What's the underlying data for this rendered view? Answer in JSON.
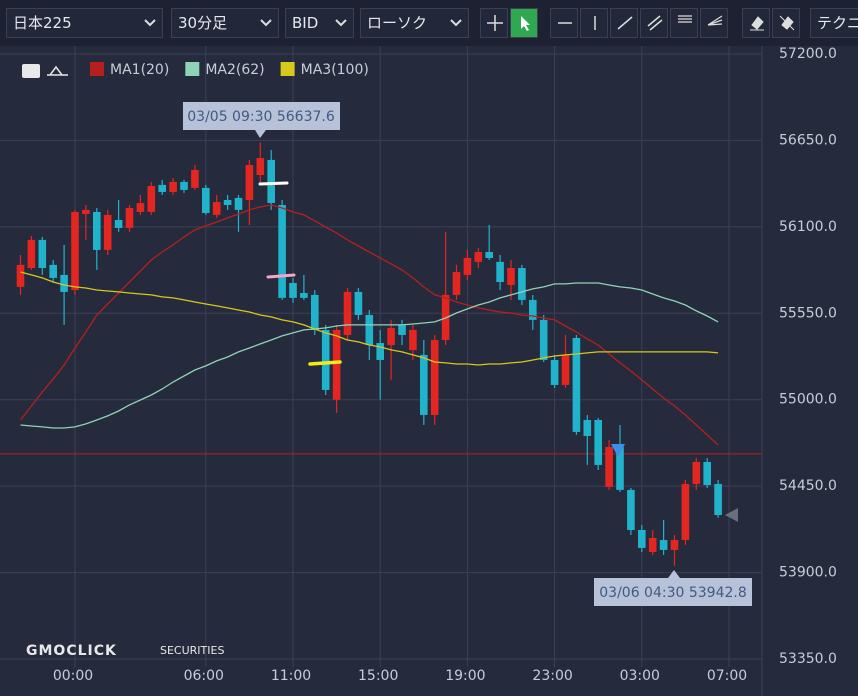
{
  "toolbar": {
    "symbol": "日本225",
    "timeframe": "30分足",
    "price_type": "BID",
    "chart_style": "ローソク",
    "indicator": "テクニ"
  },
  "watermark": {
    "brand": "GMOCLICK",
    "brand_suffix": "SECURITIES"
  },
  "chart_data": {
    "type": "candlestick",
    "categories": [
      null,
      null,
      null,
      null,
      null,
      "00:00",
      null,
      null,
      null,
      null,
      null,
      null,
      null,
      null,
      null,
      null,
      null,
      "06:00",
      null,
      null,
      null,
      null,
      null,
      null,
      null,
      "11:00",
      null,
      null,
      null,
      null,
      null,
      null,
      null,
      "15:00",
      null,
      null,
      null,
      null,
      null,
      null,
      null,
      "19:00",
      null,
      null,
      null,
      null,
      null,
      null,
      null,
      "23:00",
      null,
      null,
      null,
      null,
      null,
      null,
      null,
      "03:00",
      null,
      null,
      null,
      null,
      null,
      null,
      null,
      "07:00"
    ],
    "open": [
      55718,
      55838,
      56017,
      55858,
      55794,
      55698,
      56182,
      56195,
      55953,
      56144,
      56093,
      56195,
      56195,
      56367,
      56322,
      56386,
      56348,
      56348,
      56176,
      56271,
      56284,
      56271,
      56430,
      56526,
      56239,
      55743,
      55679,
      55667,
      55444,
      55000,
      55412,
      55686,
      55539,
      55361,
      55348,
      55476,
      55316,
      55285,
      54903,
      55380,
      55667,
      55794,
      55877,
      55940,
      55877,
      55730,
      55838,
      55635,
      55508,
      55253,
      55094,
      55393,
      54871,
      54871,
      54445,
      54699,
      54426,
      54171,
      54031,
      54107,
      54044,
      54107,
      54464,
      54604,
      54464,
      null
    ],
    "high": [
      55921,
      56042,
      56036,
      55889,
      55985,
      56208,
      56239,
      56220,
      56208,
      56271,
      56239,
      56303,
      56386,
      56399,
      56411,
      56399,
      56494,
      56367,
      56303,
      56303,
      56303,
      56526,
      56637.6,
      56589,
      56271,
      55775,
      55794,
      55698,
      55476,
      55476,
      55711,
      55711,
      55571,
      55444,
      55508,
      55508,
      55476,
      55380,
      55412,
      56068,
      55858,
      55953,
      55966,
      56112,
      55921,
      55889,
      55858,
      55667,
      55539,
      55285,
      55412,
      55412,
      54903,
      54884,
      54744,
      54839,
      54438,
      54203,
      54171,
      54235,
      54139,
      54489,
      54629,
      54629,
      54489,
      null
    ],
    "low": [
      55667,
      55826,
      55794,
      55749,
      55476,
      55667,
      56017,
      55826,
      55921,
      56068,
      56068,
      56176,
      56176,
      56303,
      56303,
      56316,
      56335,
      56176,
      56157,
      56208,
      56068,
      56112,
      56367,
      56208,
      55635,
      55616,
      55635,
      55412,
      55030,
      54916,
      55380,
      55508,
      55253,
      55000,
      55126,
      55348,
      55253,
      54839,
      54839,
      55348,
      55635,
      55762,
      55838,
      55889,
      55698,
      55635,
      55603,
      55444,
      55240,
      55075,
      55075,
      54776,
      54585,
      54553,
      54426,
      54413,
      54139,
      54031,
      54012,
      54012,
      53942.8,
      54076,
      54426,
      54438,
      54248,
      null
    ],
    "close": [
      55858,
      56017,
      55838,
      55775,
      55686,
      56195,
      56208,
      55953,
      56176,
      56093,
      56220,
      56252,
      56360,
      56322,
      56386,
      56335,
      56462,
      56188,
      56258,
      56239,
      56208,
      56494,
      56538,
      56252,
      55648,
      55648,
      55648,
      55444,
      55062,
      55444,
      55686,
      55539,
      55348,
      55253,
      55457,
      55412,
      55444,
      54903,
      55380,
      55667,
      55813,
      55902,
      55940,
      55902,
      55749,
      55838,
      55635,
      55508,
      55253,
      55094,
      55285,
      54795,
      54769,
      54585,
      54699,
      54426,
      54171,
      54057,
      54120,
      54044,
      54107,
      54464,
      54604,
      54457,
      54266,
      null
    ],
    "up_color": "#e3261f",
    "down_color": "#22b3cc",
    "series": [
      {
        "name": "MA1(20)",
        "color": "#b5201c",
        "values": [
          54871,
          54960,
          55049,
          55132,
          55221,
          55329,
          55431,
          55539,
          55609,
          55679,
          55749,
          55819,
          55889,
          55940,
          55985,
          56036,
          56080,
          56106,
          56131,
          56157,
          56182,
          56208,
          56227,
          56239,
          56220,
          56195,
          56176,
          56138,
          56099,
          56061,
          56017,
          55978,
          55940,
          55902,
          55864,
          55826,
          55775,
          55718,
          55667,
          55648,
          55622,
          55603,
          55584,
          55571,
          55558,
          55552,
          55539,
          55533,
          55520,
          55508,
          55469,
          55431,
          55387,
          55348,
          55291,
          55234,
          55183,
          55126,
          55068,
          55011,
          54960,
          54903,
          54839,
          54776,
          54712,
          null
        ]
      },
      {
        "name": "MA2(62)",
        "color": "#8fd3b6",
        "values": [
          54839,
          54833,
          54827,
          54820,
          54820,
          54827,
          54846,
          54871,
          54897,
          54928,
          54967,
          54998,
          55030,
          55068,
          55113,
          55151,
          55189,
          55215,
          55247,
          55272,
          55304,
          55329,
          55355,
          55380,
          55406,
          55425,
          55444,
          55450,
          55457,
          55469,
          55476,
          55476,
          55476,
          55476,
          55476,
          55476,
          55482,
          55488,
          55495,
          55520,
          55552,
          55578,
          55603,
          55622,
          55648,
          55667,
          55686,
          55705,
          55718,
          55737,
          55737,
          55743,
          55743,
          55743,
          55730,
          55718,
          55711,
          55698,
          55673,
          55648,
          55628,
          55603,
          55565,
          55533,
          55495,
          null
        ]
      },
      {
        "name": "MA3(100)",
        "color": "#d6c81c",
        "values": [
          55813,
          55794,
          55775,
          55749,
          55730,
          55718,
          55711,
          55698,
          55692,
          55686,
          55679,
          55673,
          55667,
          55654,
          55648,
          55635,
          55622,
          55609,
          55597,
          55584,
          55571,
          55558,
          55539,
          55527,
          55508,
          55495,
          55476,
          55450,
          55425,
          55406,
          55380,
          55368,
          55348,
          55336,
          55317,
          55304,
          55285,
          55266,
          55240,
          55234,
          55227,
          55227,
          55221,
          55227,
          55227,
          55234,
          55240,
          55253,
          55266,
          55278,
          55285,
          55291,
          55298,
          55304,
          55304,
          55304,
          55304,
          55304,
          55304,
          55304,
          55304,
          55304,
          55304,
          55304,
          55298,
          null
        ]
      }
    ],
    "reference_line": 54655,
    "reference_color": "#b5201c",
    "annotations": [
      "03/05 09:30 56637.6",
      "03/06 04:30 53942.8"
    ],
    "ylim": [
      53350,
      57200
    ],
    "yticks": [
      {
        "value": 57200,
        "label": "57200.0"
      },
      {
        "value": 56650,
        "label": "56650.0"
      },
      {
        "value": 56100,
        "label": "56100.0"
      },
      {
        "value": 55550,
        "label": "55550.0"
      },
      {
        "value": 55000,
        "label": "55000.0"
      },
      {
        "value": 54450,
        "label": "54450.0"
      },
      {
        "value": 53900,
        "label": "53900.0"
      },
      {
        "value": 53350,
        "label": "53350.0"
      }
    ],
    "grid": true
  }
}
